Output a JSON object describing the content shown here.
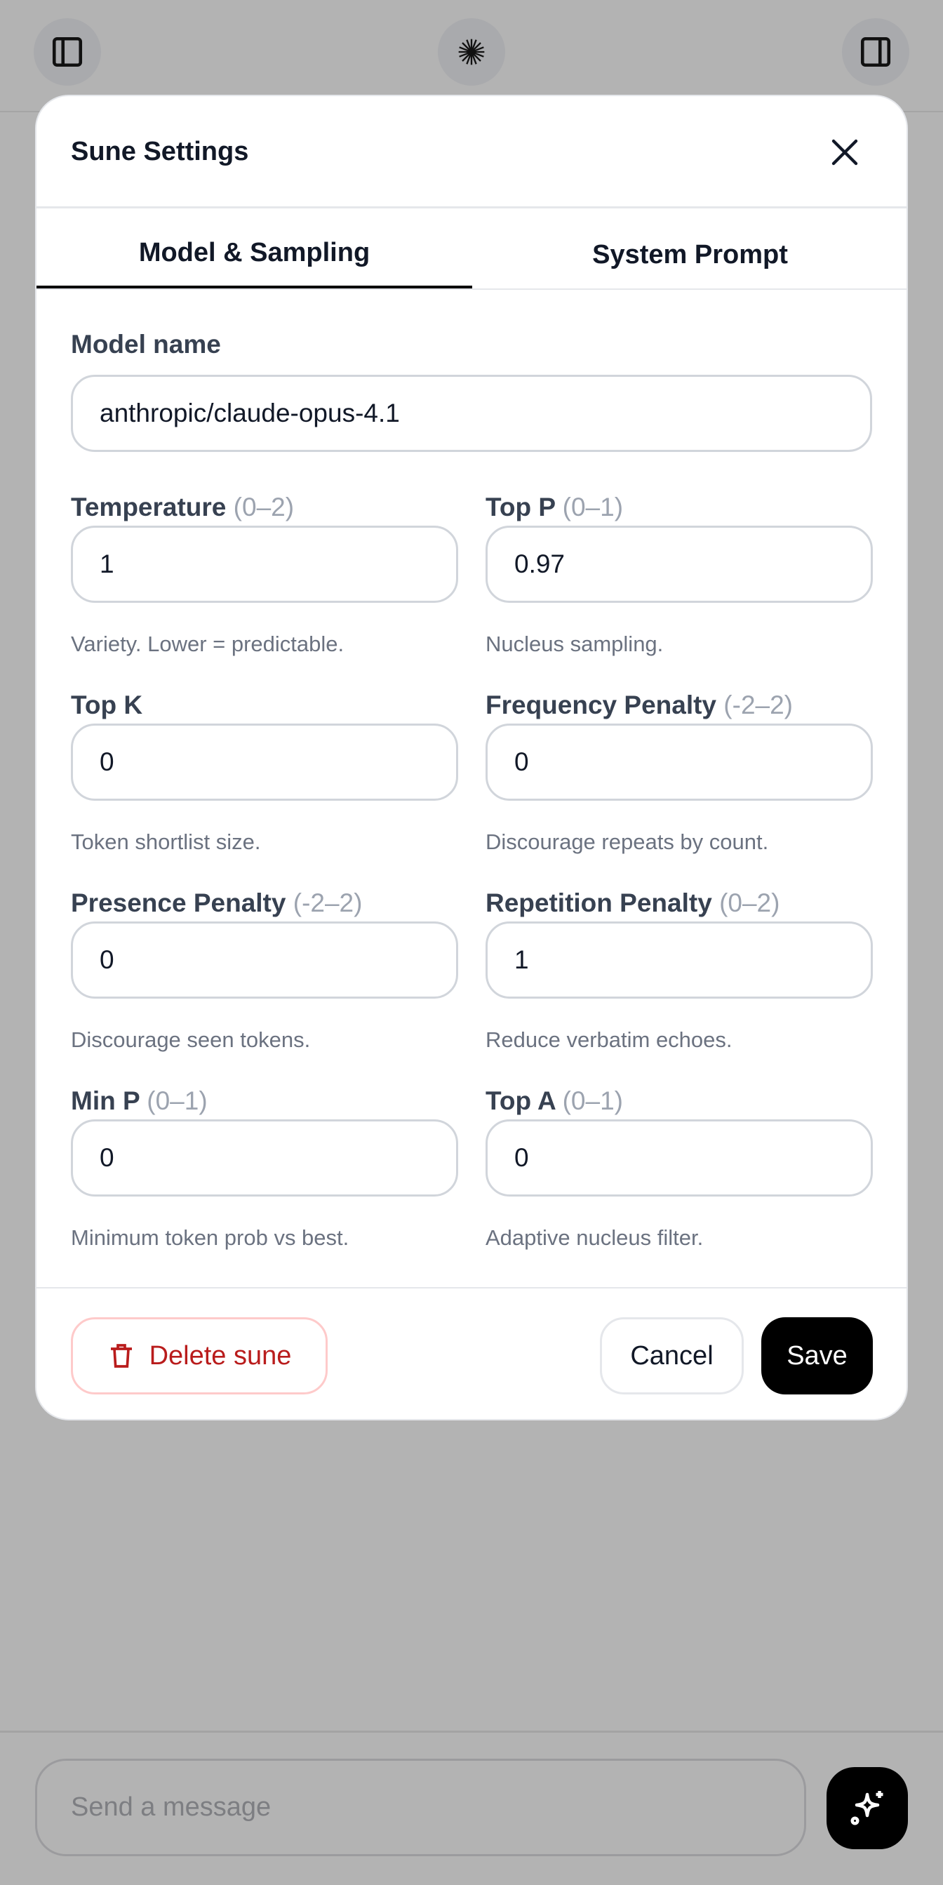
{
  "topbar": {
    "left_icon": "sidebar-left-icon",
    "center_icon": "starburst-logo-icon",
    "right_icon": "sidebar-right-icon"
  },
  "modal": {
    "title": "Sune Settings",
    "tabs": [
      {
        "label": "Model & Sampling",
        "active": true
      },
      {
        "label": "System Prompt",
        "active": false
      }
    ],
    "model_name": {
      "label": "Model name",
      "value": "anthropic/claude-opus-4.1"
    },
    "fields": [
      {
        "label": "Temperature",
        "range": "(0–2)",
        "value": "1",
        "help": "Variety. Lower = predictable."
      },
      {
        "label": "Top P",
        "range": "(0–1)",
        "value": "0.97",
        "help": "Nucleus sampling."
      },
      {
        "label": "Top K",
        "range": "",
        "value": "0",
        "help": "Token shortlist size."
      },
      {
        "label": "Frequency Penalty",
        "range": "(-2–2)",
        "value": "0",
        "help": "Discourage repeats by count."
      },
      {
        "label": "Presence Penalty",
        "range": "(-2–2)",
        "value": "0",
        "help": "Discourage seen tokens."
      },
      {
        "label": "Repetition Penalty",
        "range": "(0–2)",
        "value": "1",
        "help": "Reduce verbatim echoes."
      },
      {
        "label": "Min P",
        "range": "(0–1)",
        "value": "0",
        "help": "Minimum token prob vs best."
      },
      {
        "label": "Top A",
        "range": "(0–1)",
        "value": "0",
        "help": "Adaptive nucleus filter."
      }
    ],
    "footer": {
      "delete_label": "Delete sune",
      "cancel_label": "Cancel",
      "save_label": "Save"
    },
    "colors": {
      "danger": "#b91c1c",
      "primary": "#000000"
    }
  },
  "composer": {
    "placeholder": "Send a message",
    "send_icon": "sparkles-icon"
  }
}
